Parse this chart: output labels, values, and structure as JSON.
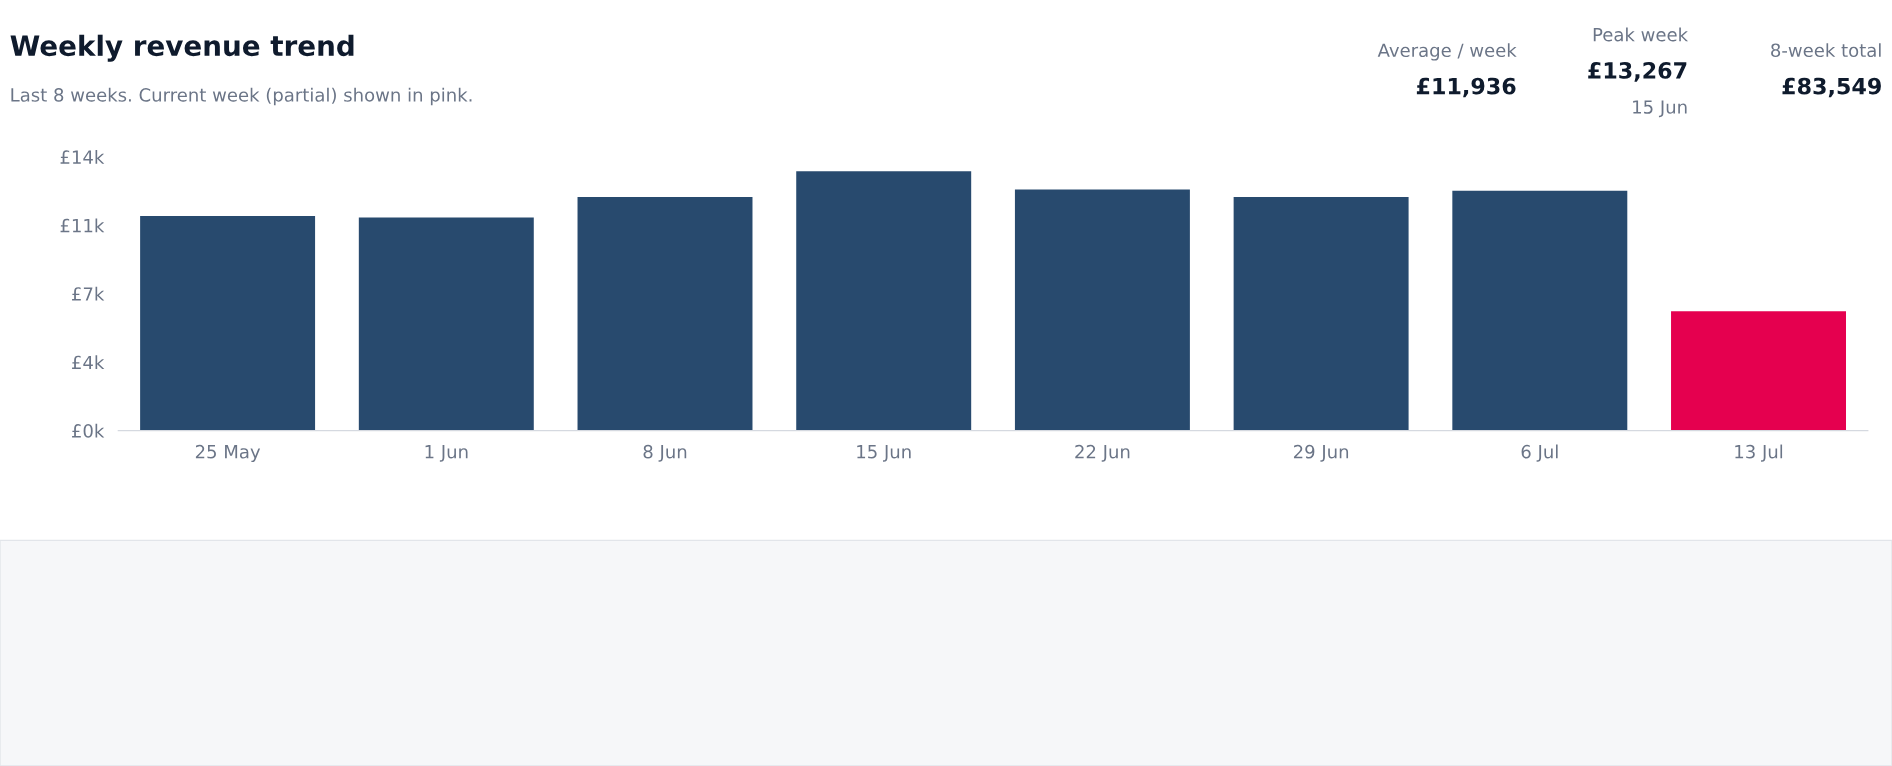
{
  "chart_data": {
    "type": "bar",
    "title": "Weekly revenue trend",
    "subtitle": "Last 8 weeks. Current week (partial) shown in pink.",
    "categories": [
      "25 May",
      "1 Jun",
      "8 Jun",
      "15 Jun",
      "22 Jun",
      "29 Jun",
      "6 Jul",
      "13 Jul"
    ],
    "values": [
      10980,
      10900,
      11950,
      13267,
      12330,
      11950,
      12270,
      6100
    ],
    "colors": [
      "#284a6e",
      "#284a6e",
      "#284a6e",
      "#284a6e",
      "#284a6e",
      "#284a6e",
      "#284a6e",
      "#e5004f"
    ],
    "ylim": [
      0,
      14000
    ],
    "yticks": [
      {
        "value": 0,
        "label": "£0k"
      },
      {
        "value": 3500,
        "label": "£4k"
      },
      {
        "value": 7000,
        "label": "£7k"
      },
      {
        "value": 10500,
        "label": "£11k"
      },
      {
        "value": 14000,
        "label": "£14k"
      }
    ],
    "grid": false,
    "legend": false,
    "annotations": [
      "Average / week",
      "£11,936",
      "Peak week",
      "£13,267",
      "15 Jun",
      "8-week total",
      "£83,549"
    ]
  }
}
